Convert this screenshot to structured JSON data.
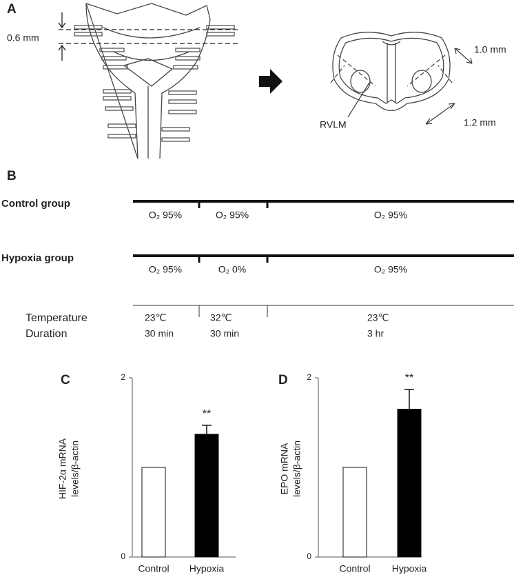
{
  "panel_a": {
    "label": "A",
    "spacing": "0.6 mm",
    "width": "1.0 mm",
    "region": "RVLM",
    "depth": "1.2 mm"
  },
  "panel_b": {
    "label": "B",
    "groups": [
      {
        "name": "Control group",
        "phases": [
          "O₂ 95%",
          "O₂ 95%",
          "O₂ 95%"
        ]
      },
      {
        "name": "Hypoxia group",
        "phases": [
          "O₂ 95%",
          "O₂ 0%",
          "O₂ 95%"
        ]
      }
    ],
    "rows": [
      {
        "name": "Temperature",
        "values": [
          "23℃",
          "32℃",
          "23℃"
        ]
      },
      {
        "name": "Duration",
        "values": [
          "30 min",
          "30 min",
          "3 hr"
        ]
      }
    ]
  },
  "chart_data": [
    {
      "type": "bar",
      "panel_label": "C",
      "y_label": [
        "HIF-2α mRNA",
        "levels/β-actin"
      ],
      "categories": [
        "Control",
        "Hypoxia"
      ],
      "values": [
        1,
        1.37
      ],
      "errors": [
        null,
        0.1
      ],
      "colors": [
        "#ffffff",
        "#000000"
      ],
      "significance": [
        null,
        "**"
      ],
      "ylim": [
        0,
        2
      ],
      "yticks": [
        0,
        2
      ]
    },
    {
      "type": "bar",
      "panel_label": "D",
      "y_label": [
        "EPO mRNA",
        "levels/β-actin"
      ],
      "categories": [
        "Control",
        "Hypoxia"
      ],
      "values": [
        1,
        1.65
      ],
      "errors": [
        null,
        0.22
      ],
      "colors": [
        "#ffffff",
        "#000000"
      ],
      "significance": [
        null,
        "**"
      ],
      "ylim": [
        0,
        2
      ],
      "yticks": [
        0,
        2
      ]
    }
  ]
}
